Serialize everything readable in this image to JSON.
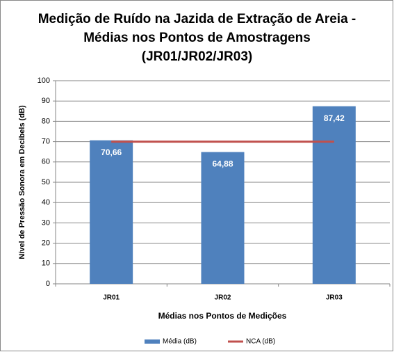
{
  "chart_data": {
    "type": "bar",
    "title": "Medição de Ruído na Jazida de Extração de Areia - Médias nos Pontos de Amostragens (JR01/JR02/JR03)",
    "x_label": "Médias nos Pontos de Medições",
    "y_label": "Nível de Pressão Sonora em Decibels (dB)",
    "categories": [
      "JR01",
      "JR02",
      "JR03"
    ],
    "series": [
      {
        "name": "Média (dB)",
        "type": "bar",
        "color": "#4f81bd",
        "values": [
          70.66,
          64.88,
          87.42
        ],
        "value_labels": [
          "70,66",
          "64,88",
          "87,42"
        ]
      },
      {
        "name": "NCA (dB)",
        "type": "line",
        "color": "#c0504d",
        "values": [
          70,
          70,
          70
        ]
      }
    ],
    "ylim": [
      0,
      100
    ],
    "yticks": [
      0,
      10,
      20,
      30,
      40,
      50,
      60,
      70,
      80,
      90,
      100
    ],
    "grid": true,
    "legend": "bottom"
  }
}
